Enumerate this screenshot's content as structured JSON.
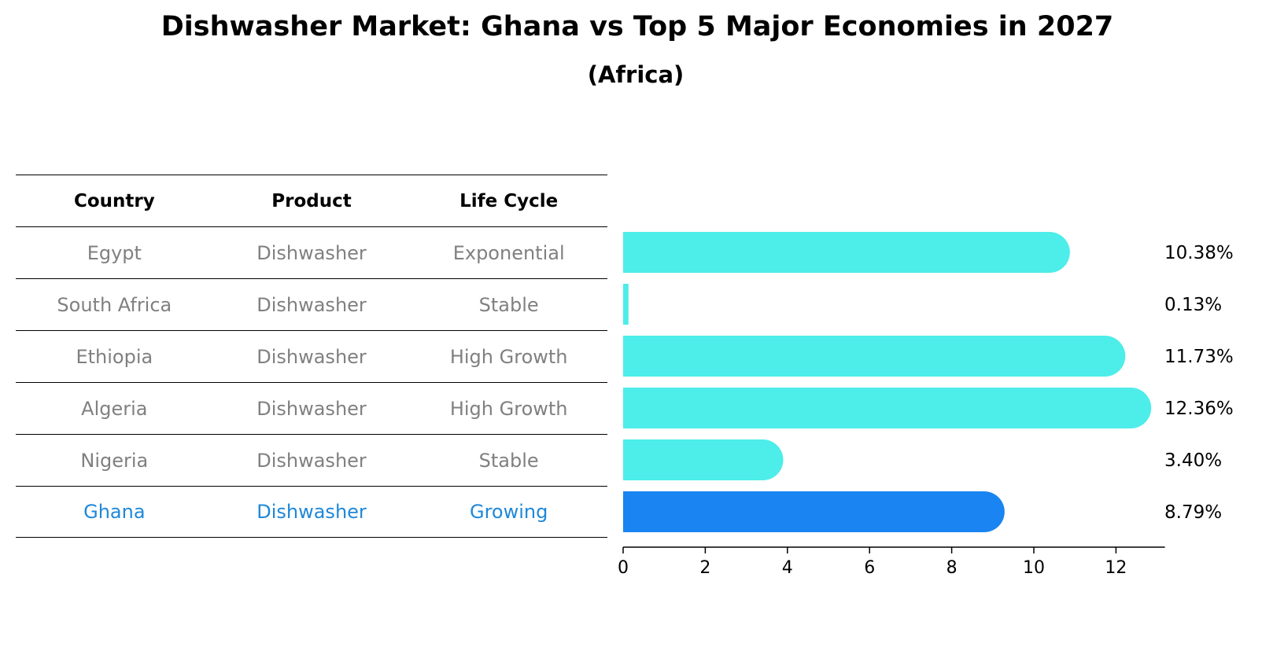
{
  "title": "Dishwasher Market: Ghana vs Top 5 Major Economies in 2027",
  "subtitle": "(Africa)",
  "table": {
    "headers": [
      "Country",
      "Product",
      "Life Cycle"
    ],
    "rows": [
      [
        "Egypt",
        "Dishwasher",
        "Exponential"
      ],
      [
        "South Africa",
        "Dishwasher",
        "Stable"
      ],
      [
        "Ethiopia",
        "Dishwasher",
        "High Growth"
      ],
      [
        "Algeria",
        "Dishwasher",
        "High Growth"
      ],
      [
        "Nigeria",
        "Dishwasher",
        "Stable"
      ],
      [
        "Ghana",
        "Dishwasher",
        "Growing"
      ]
    ]
  },
  "chart_data": {
    "type": "bar",
    "orientation": "horizontal",
    "categories": [
      "Egypt",
      "South Africa",
      "Ethiopia",
      "Algeria",
      "Nigeria",
      "Ghana"
    ],
    "values": [
      10.38,
      0.13,
      11.73,
      12.36,
      3.4,
      8.79
    ],
    "value_labels": [
      "10.38%",
      "0.13%",
      "11.73%",
      "12.36%",
      "3.40%",
      "8.79%"
    ],
    "xlim": [
      0,
      13
    ],
    "xticks": [
      "0",
      "2",
      "4",
      "6",
      "8",
      "10",
      "12"
    ],
    "grid": false,
    "colors": {
      "default": "#4dede9",
      "highlight": "#1984f2"
    },
    "highlight_category": "Ghana"
  }
}
